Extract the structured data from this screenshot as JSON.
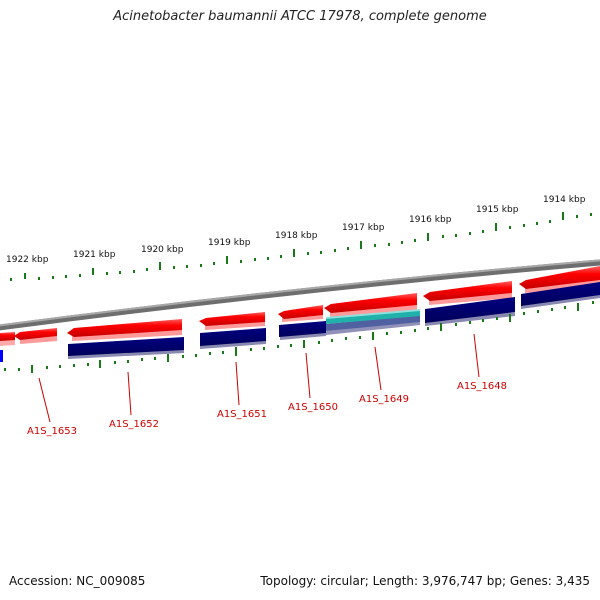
{
  "title": "Acinetobacter baumannii ATCC 17978, complete genome",
  "footer": {
    "accession": "Accession: NC_009085",
    "summary": "Topology: circular; Length: 3,976,747 bp; Genes: 3,435"
  },
  "scale_labels": [
    "1922 kbp",
    "1921 kbp",
    "1920 kbp",
    "1919 kbp",
    "1918 kbp",
    "1917 kbp",
    "1916 kbp",
    "1915 kbp",
    "1914 kbp"
  ],
  "gene_labels": [
    "A1S_1653",
    "A1S_1652",
    "A1S_1651",
    "A1S_1650",
    "A1S_1649",
    "A1S_1648"
  ],
  "colors": {
    "backbone": "#808080",
    "gene": "#ff0000",
    "cds": "#000080",
    "rna": "#20b2aa",
    "other": "#0000ff",
    "ticks": "#1a7a1a",
    "labels": "#cc0000"
  }
}
